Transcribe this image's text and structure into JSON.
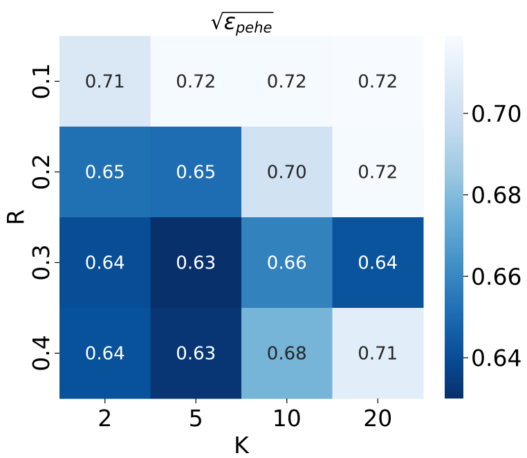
{
  "chart_data": {
    "type": "heatmap",
    "title": "√ε_pehe",
    "title_parts": {
      "radical": "√",
      "symbol": "ε",
      "subscript": "pehe"
    },
    "xlabel": "K",
    "ylabel": "R",
    "x_categories": [
      "2",
      "5",
      "10",
      "20"
    ],
    "y_categories": [
      "0.1",
      "0.2",
      "0.3",
      "0.4"
    ],
    "values": [
      [
        0.706,
        0.718,
        0.718,
        0.719
      ],
      [
        0.652,
        0.651,
        0.702,
        0.718
      ],
      [
        0.64,
        0.63,
        0.658,
        0.642
      ],
      [
        0.641,
        0.632,
        0.677,
        0.709
      ]
    ],
    "labels": [
      [
        "0.71",
        "0.72",
        "0.72",
        "0.72"
      ],
      [
        "0.65",
        "0.65",
        "0.70",
        "0.72"
      ],
      [
        "0.64",
        "0.63",
        "0.66",
        "0.64"
      ],
      [
        "0.64",
        "0.63",
        "0.68",
        "0.71"
      ]
    ],
    "colorbar": {
      "colormap": "Blues_r",
      "vmin": 0.63,
      "vmax": 0.719,
      "ticks": [
        0.64,
        0.66,
        0.68,
        0.7
      ],
      "tick_labels": [
        "0.64",
        "0.66",
        "0.68",
        "0.70"
      ]
    },
    "grid": false
  }
}
